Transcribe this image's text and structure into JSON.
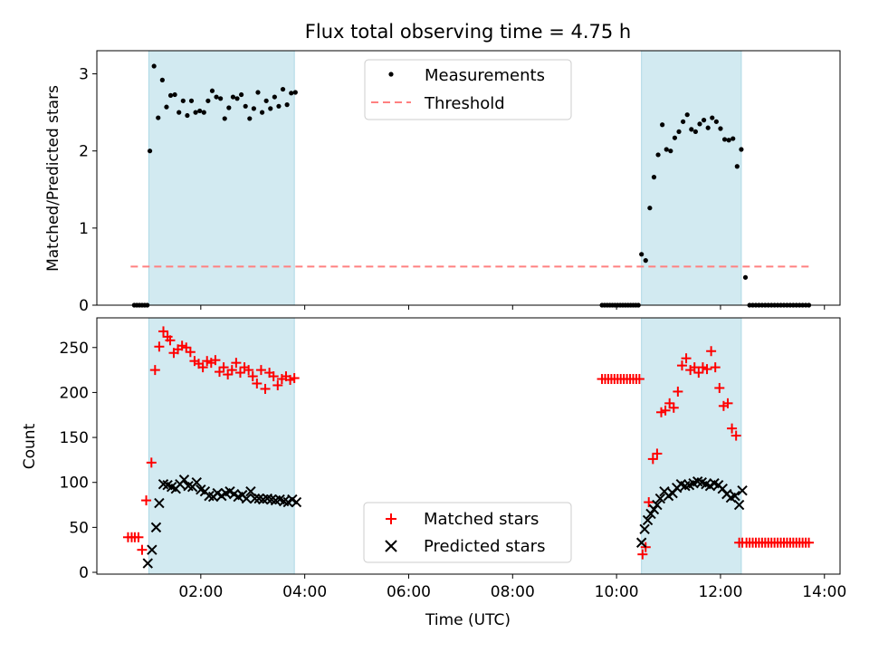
{
  "figure": {
    "title": "Flux total observing time = 4.75 h"
  },
  "chart_data": [
    {
      "type": "scatter",
      "panel": "top",
      "ylabel": "Matched/Predicted stars",
      "xlabel": "",
      "xlim": [
        0.0,
        14.3
      ],
      "ylim": [
        0,
        3.3
      ],
      "x_ticks": [
        2,
        4,
        6,
        8,
        10,
        12,
        14
      ],
      "x_tick_labels_visible": false,
      "y_ticks": [
        0,
        1,
        2,
        3
      ],
      "y_tick_labels": [
        "0",
        "1",
        "2",
        "3"
      ],
      "shaded_spans": [
        [
          1.0,
          3.8
        ],
        [
          10.48,
          12.4
        ]
      ],
      "shade_color": "#add8e6",
      "legend": {
        "position": "upper center",
        "entries": [
          "Measurements",
          "Threshold"
        ]
      },
      "series": [
        {
          "name": "Measurements",
          "marker": "dot",
          "color": "#000000",
          "x": [
            0.72,
            0.77,
            0.82,
            0.87,
            0.92,
            0.97,
            1.02,
            1.1,
            1.18,
            1.26,
            1.34,
            1.42,
            1.5,
            1.58,
            1.66,
            1.74,
            1.82,
            1.9,
            1.98,
            2.06,
            2.14,
            2.22,
            2.3,
            2.38,
            2.46,
            2.54,
            2.62,
            2.7,
            2.78,
            2.86,
            2.94,
            3.02,
            3.1,
            3.18,
            3.26,
            3.34,
            3.42,
            3.5,
            3.58,
            3.66,
            3.74,
            3.82,
            9.72,
            9.77,
            9.82,
            9.87,
            9.92,
            9.97,
            10.02,
            10.07,
            10.12,
            10.17,
            10.22,
            10.27,
            10.32,
            10.37,
            10.42,
            10.48,
            10.56,
            10.64,
            10.72,
            10.8,
            10.88,
            10.96,
            11.04,
            11.12,
            11.2,
            11.28,
            11.36,
            11.44,
            11.52,
            11.6,
            11.68,
            11.76,
            11.84,
            11.92,
            12.0,
            12.08,
            12.16,
            12.24,
            12.32,
            12.4,
            12.48,
            12.56,
            12.62,
            12.68,
            12.74,
            12.8,
            12.86,
            12.92,
            12.98,
            13.04,
            13.1,
            13.16,
            13.22,
            13.28,
            13.34,
            13.4,
            13.46,
            13.52,
            13.58,
            13.64,
            13.7
          ],
          "y": [
            0,
            0,
            0,
            0,
            0,
            0,
            2.0,
            3.1,
            2.43,
            2.92,
            2.57,
            2.72,
            2.73,
            2.5,
            2.65,
            2.46,
            2.65,
            2.5,
            2.52,
            2.5,
            2.65,
            2.78,
            2.7,
            2.68,
            2.42,
            2.56,
            2.7,
            2.68,
            2.73,
            2.58,
            2.42,
            2.55,
            2.76,
            2.5,
            2.65,
            2.55,
            2.7,
            2.58,
            2.8,
            2.6,
            2.75,
            2.76,
            0,
            0,
            0,
            0,
            0,
            0,
            0,
            0,
            0,
            0,
            0,
            0,
            0,
            0,
            0,
            0.66,
            0.58,
            1.26,
            1.66,
            1.95,
            2.34,
            2.02,
            2.0,
            2.17,
            2.25,
            2.38,
            2.47,
            2.28,
            2.25,
            2.35,
            2.4,
            2.3,
            2.43,
            2.38,
            2.29,
            2.15,
            2.14,
            2.16,
            1.8,
            2.02,
            0.36,
            0,
            0,
            0,
            0,
            0,
            0,
            0,
            0,
            0,
            0,
            0,
            0,
            0,
            0,
            0,
            0,
            0,
            0,
            0,
            0
          ]
        },
        {
          "name": "Threshold",
          "marker": "dashed-line",
          "color": "#ff8080",
          "x": [
            0.65,
            13.7
          ],
          "y": [
            0.5,
            0.5
          ]
        }
      ]
    },
    {
      "type": "scatter",
      "panel": "bottom",
      "ylabel": "Count",
      "xlabel": "Time (UTC)",
      "xlim": [
        0.0,
        14.3
      ],
      "ylim": [
        -2,
        283
      ],
      "x_ticks": [
        2,
        4,
        6,
        8,
        10,
        12,
        14
      ],
      "x_tick_labels": [
        "02:00",
        "04:00",
        "06:00",
        "08:00",
        "10:00",
        "12:00",
        "14:00"
      ],
      "y_ticks": [
        0,
        50,
        100,
        150,
        200,
        250
      ],
      "y_tick_labels": [
        "0",
        "50",
        "100",
        "150",
        "200",
        "250"
      ],
      "shaded_spans": [
        [
          1.0,
          3.8
        ],
        [
          10.48,
          12.4
        ]
      ],
      "shade_color": "#add8e6",
      "legend": {
        "position": "lower center",
        "entries": [
          "Matched stars",
          "Predicted stars"
        ]
      },
      "series": [
        {
          "name": "Matched stars",
          "marker": "plus",
          "color": "#ff0000",
          "x": [
            0.6,
            0.67,
            0.73,
            0.8,
            0.87,
            0.95,
            1.05,
            1.12,
            1.2,
            1.28,
            1.36,
            1.41,
            1.48,
            1.56,
            1.64,
            1.72,
            1.8,
            1.88,
            1.96,
            2.04,
            2.12,
            2.2,
            2.28,
            2.36,
            2.44,
            2.52,
            2.6,
            2.68,
            2.76,
            2.84,
            2.92,
            3.0,
            3.08,
            3.16,
            3.24,
            3.32,
            3.4,
            3.48,
            3.56,
            3.64,
            3.72,
            3.8,
            9.72,
            9.78,
            9.84,
            9.9,
            9.96,
            10.02,
            10.08,
            10.14,
            10.2,
            10.26,
            10.32,
            10.38,
            10.44,
            10.5,
            10.56,
            10.62,
            10.7,
            10.78,
            10.86,
            10.94,
            11.02,
            11.1,
            11.18,
            11.26,
            11.34,
            11.42,
            11.5,
            11.58,
            11.66,
            11.74,
            11.82,
            11.9,
            11.98,
            12.06,
            12.14,
            12.22,
            12.3,
            12.36,
            12.42,
            12.5,
            12.56,
            12.62,
            12.68,
            12.74,
            12.8,
            12.86,
            12.92,
            12.98,
            13.04,
            13.1,
            13.16,
            13.22,
            13.28,
            13.34,
            13.4,
            13.46,
            13.52,
            13.58,
            13.64,
            13.7
          ],
          "y": [
            39,
            39,
            39,
            39,
            25,
            80,
            122,
            225,
            251,
            268,
            262,
            258,
            244,
            248,
            252,
            250,
            245,
            235,
            232,
            228,
            235,
            233,
            236,
            223,
            228,
            220,
            225,
            233,
            222,
            228,
            225,
            218,
            210,
            225,
            204,
            222,
            218,
            208,
            215,
            218,
            214,
            216,
            215,
            215,
            215,
            215,
            215,
            215,
            215,
            215,
            215,
            215,
            215,
            215,
            215,
            20,
            28,
            78,
            126,
            132,
            178,
            180,
            188,
            183,
            201,
            230,
            238,
            225,
            228,
            222,
            228,
            226,
            246,
            228,
            205,
            185,
            188,
            160,
            152,
            33,
            33,
            33,
            33,
            33,
            33,
            33,
            33,
            33,
            33,
            33,
            33,
            33,
            33,
            33,
            33,
            33,
            33,
            33,
            33,
            33,
            33,
            33
          ]
        },
        {
          "name": "Predicted stars",
          "marker": "x",
          "color": "#000000",
          "x": [
            0.98,
            1.06,
            1.14,
            1.2,
            1.28,
            1.36,
            1.44,
            1.52,
            1.6,
            1.68,
            1.76,
            1.84,
            1.92,
            2.0,
            2.08,
            2.16,
            2.24,
            2.32,
            2.4,
            2.48,
            2.56,
            2.64,
            2.72,
            2.8,
            2.88,
            2.96,
            3.04,
            3.12,
            3.2,
            3.28,
            3.36,
            3.44,
            3.52,
            3.6,
            3.68,
            3.76,
            3.84,
            10.48,
            10.54,
            10.6,
            10.66,
            10.72,
            10.78,
            10.84,
            10.92,
            11.0,
            11.08,
            11.16,
            11.24,
            11.32,
            11.4,
            11.48,
            11.56,
            11.64,
            11.72,
            11.8,
            11.88,
            11.96,
            12.04,
            12.12,
            12.2,
            12.28,
            12.36,
            12.42
          ],
          "y": [
            10,
            25,
            50,
            77,
            98,
            97,
            95,
            93,
            98,
            103,
            96,
            95,
            100,
            92,
            90,
            85,
            84,
            88,
            85,
            88,
            90,
            87,
            84,
            86,
            82,
            90,
            82,
            82,
            81,
            82,
            81,
            80,
            81,
            79,
            78,
            81,
            78,
            33,
            48,
            58,
            65,
            70,
            75,
            82,
            90,
            85,
            88,
            94,
            98,
            96,
            97,
            99,
            101,
            100,
            98,
            96,
            99,
            97,
            93,
            87,
            83,
            85,
            75,
            91
          ]
        }
      ]
    }
  ]
}
